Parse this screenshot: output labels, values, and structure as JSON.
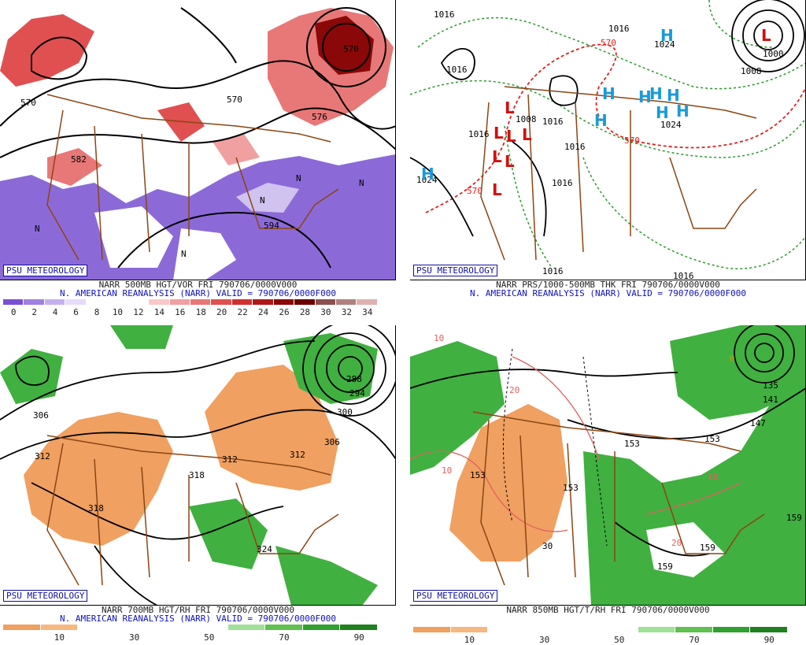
{
  "panels": [
    {
      "id": "500mb",
      "badge": "PSU METEOROLOGY",
      "caption1": "NARR 500MB HGT/VOR FRI 790706/0000V000",
      "caption2": "N. AMERICAN REANALYSIS (NARR) VALID = 790706/0000F000",
      "colorbar": [
        "#7a50d0",
        "#a080e0",
        "#c4b0f0",
        "#e6dcf8",
        "#ffffff",
        "#ffffff",
        "#ffffff",
        "#f8c8c8",
        "#f0a0a0",
        "#e87878",
        "#e05050",
        "#d03030",
        "#b01818",
        "#8a0808",
        "#6a0000",
        "#8a5050",
        "#b08080",
        "#e0b0b0"
      ],
      "ticks": [
        "0",
        "2",
        "4",
        "6",
        "8",
        "10",
        "12",
        "14",
        "16",
        "18",
        "20",
        "22",
        "24",
        "26",
        "28",
        "30",
        "32",
        "34"
      ],
      "labels": [
        "570",
        "570",
        "582",
        "594",
        "576",
        "570",
        "N",
        "N",
        "N",
        "N",
        "N"
      ]
    },
    {
      "id": "thk",
      "badge": "PSU METEOROLOGY",
      "caption1": "NARR PRS/1000-500MB THK FRI 790706/0000V000",
      "caption2": "N. AMERICAN REANALYSIS (NARR) VALID = 790706/0000F000",
      "labels": [
        "1016",
        "1016",
        "1016",
        "1008",
        "1016",
        "1016",
        "1024",
        "1024",
        "1008",
        "1016",
        "1016",
        "1016",
        "1024",
        "570",
        "570",
        "570",
        "1016",
        "1000"
      ],
      "highs": [
        "H",
        "H",
        "H",
        "H",
        "H",
        "H",
        "H",
        "H",
        "H"
      ],
      "lows": [
        "L",
        "L",
        "L",
        "L",
        "L",
        "L",
        "L",
        "L"
      ]
    },
    {
      "id": "700mb",
      "badge": "PSU METEOROLOGY",
      "caption1": "NARR 700MB HGT/RH FRI 790706/0000V000",
      "caption2": "N. AMERICAN REANALYSIS (NARR) VALID = 790706/0000F000",
      "colorbar": [
        "#f0a060",
        "#f4b880",
        "#ffffff",
        "#ffffff",
        "#ffffff",
        "#ffffff",
        "#a0e098",
        "#60c050",
        "#30a030",
        "#208020"
      ],
      "ticks": [
        "10",
        "30",
        "50",
        "70",
        "90"
      ],
      "labels": [
        "306",
        "312",
        "318",
        "318",
        "312",
        "312",
        "306",
        "300",
        "294",
        "288",
        "324"
      ]
    },
    {
      "id": "850mb",
      "badge": "PSU METEOROLOGY",
      "caption1": "NARR 850MB HGT/T/RH FRI 790706/0000V000",
      "colorbar": [
        "#f0a060",
        "#f4b880",
        "#ffffff",
        "#ffffff",
        "#ffffff",
        "#ffffff",
        "#a0e098",
        "#60c050",
        "#30a030",
        "#208020"
      ],
      "ticks": [
        "10",
        "30",
        "50",
        "70",
        "90"
      ],
      "labels": [
        "153",
        "153",
        "153",
        "153",
        "159",
        "159",
        "159",
        "147",
        "141",
        "135",
        "10",
        "10",
        "20",
        "20",
        "30",
        "10",
        "0"
      ]
    }
  ],
  "colors": {
    "purple": "#8b6ad8",
    "red": "#e05050",
    "orange": "#f0a060",
    "green": "#30b030",
    "brown": "#8b4513",
    "contour": "#000000",
    "blue": "#1a9ad8"
  }
}
